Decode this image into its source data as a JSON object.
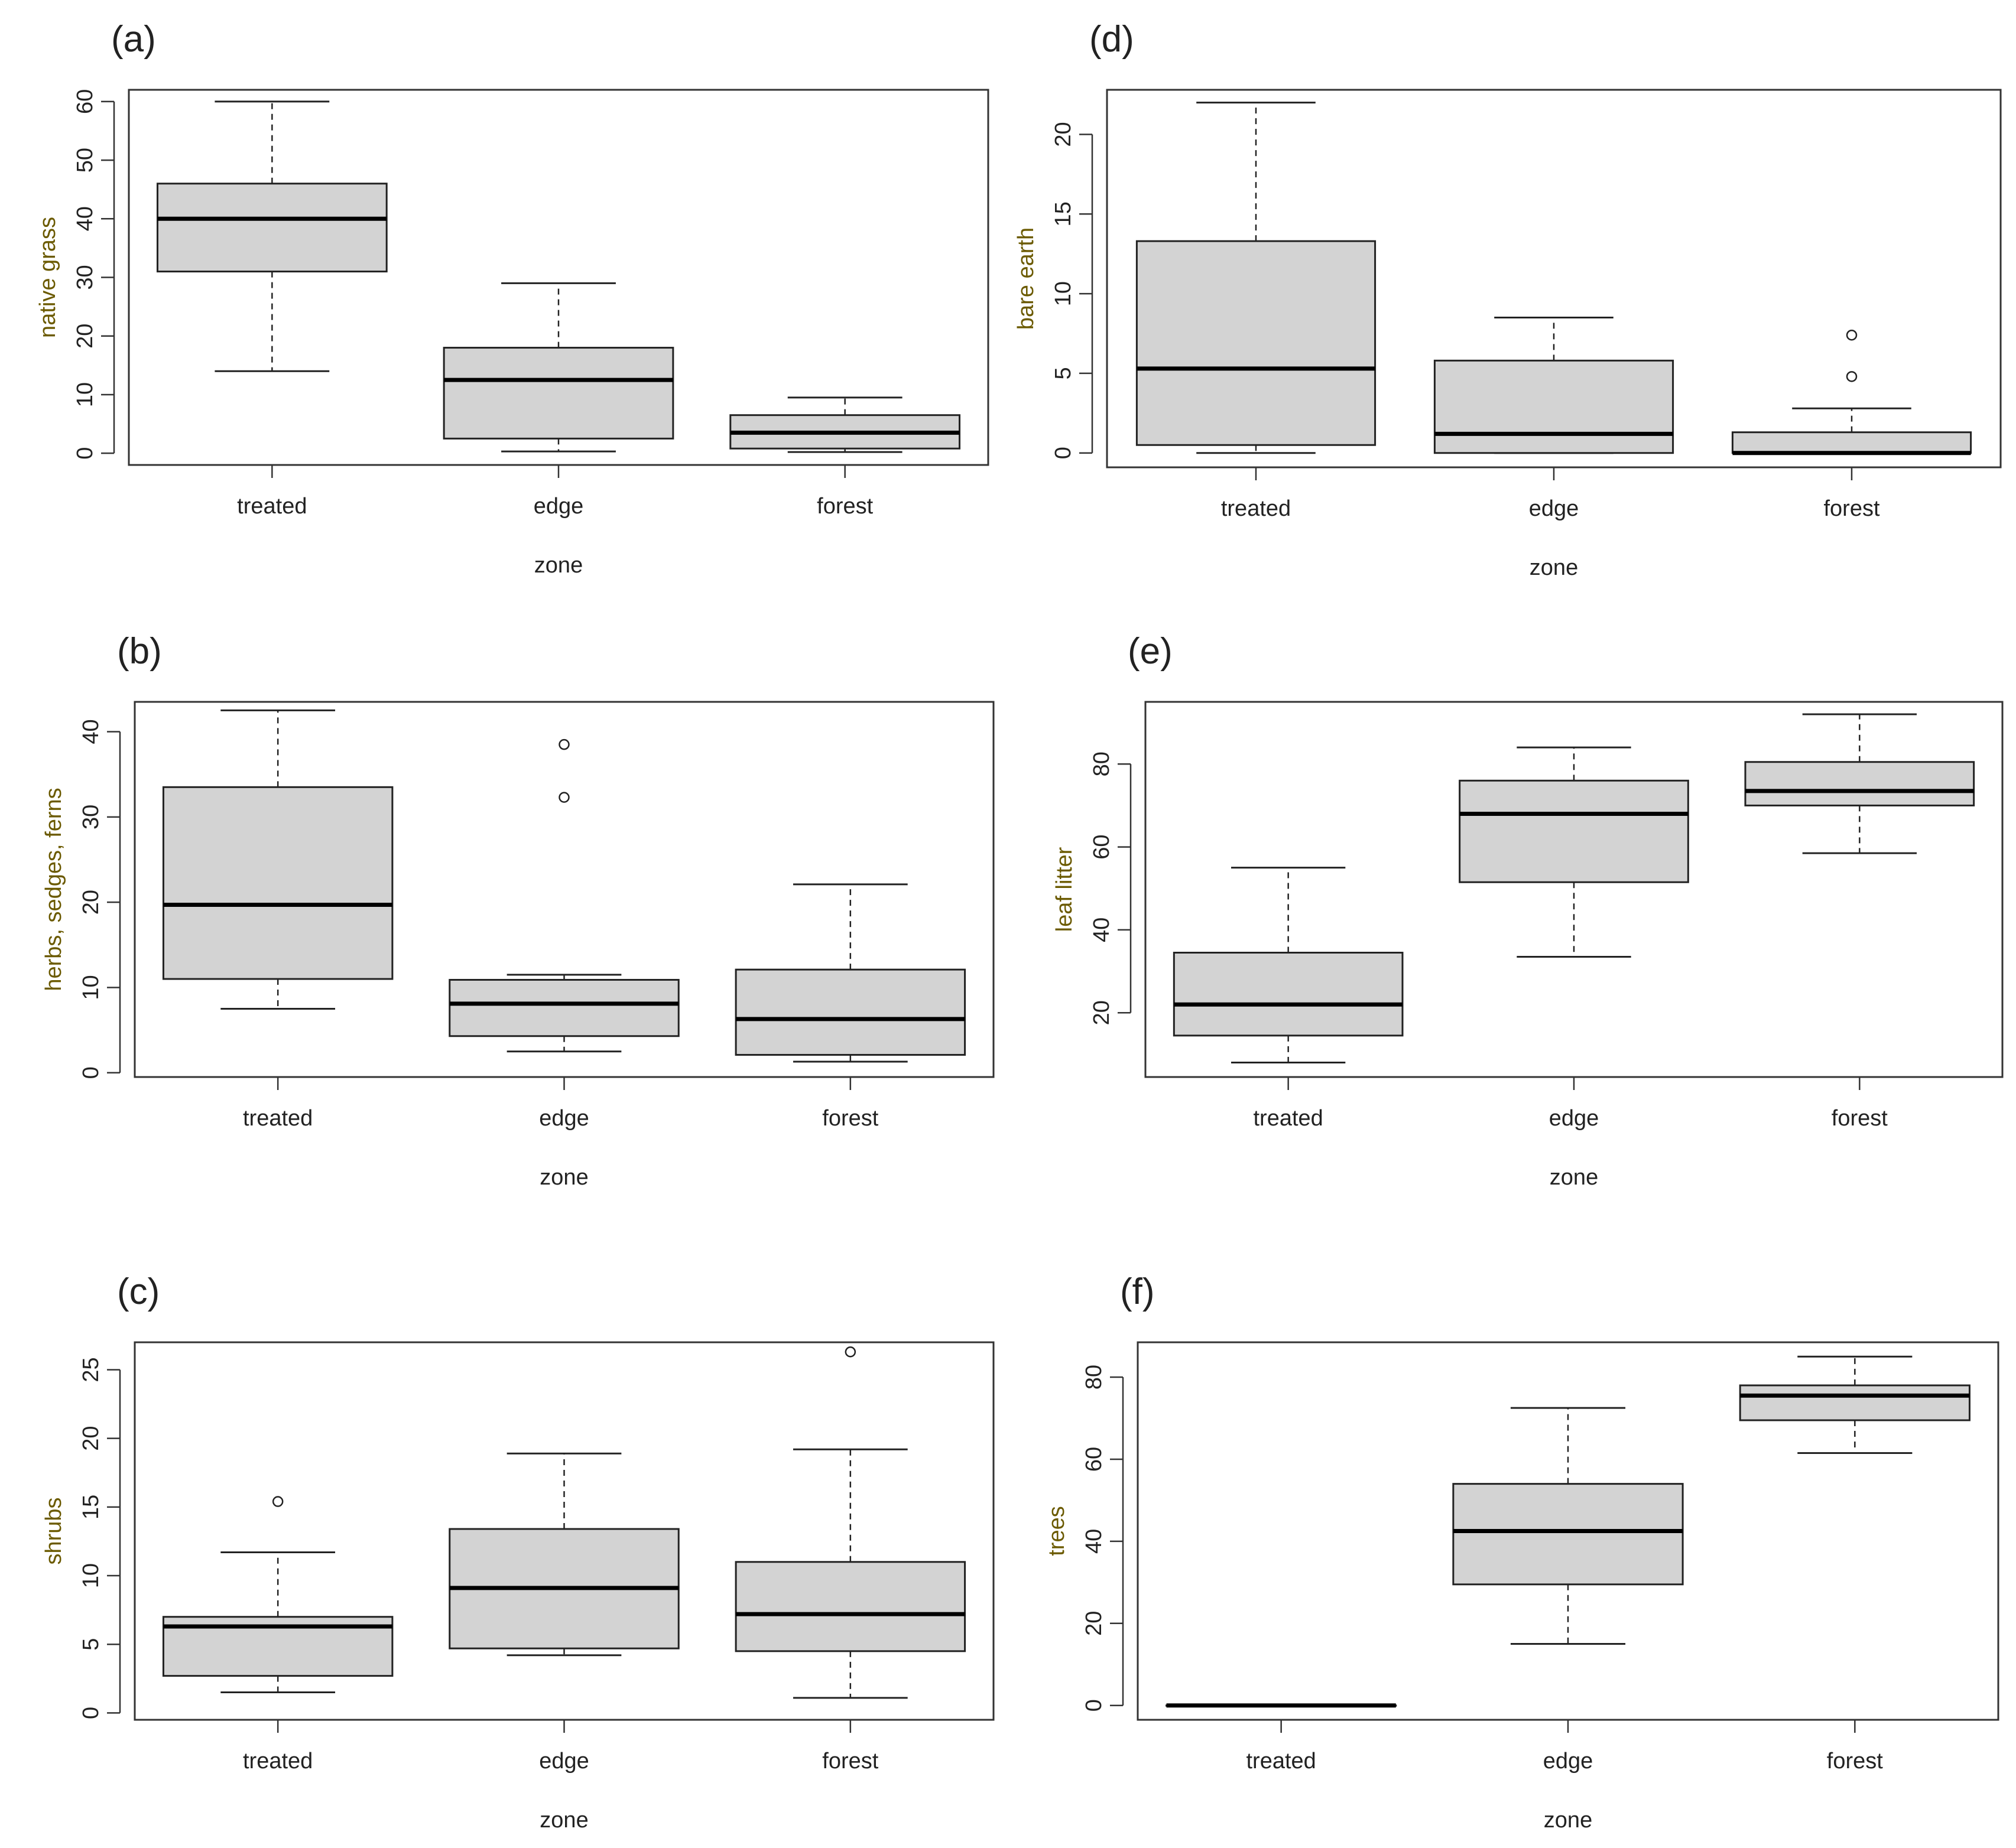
{
  "figure": {
    "background": "#ffffff",
    "box_fill": "#d3d3d3",
    "ylabel_color": "#6b5a00"
  },
  "chart_data": [
    {
      "type": "boxplot",
      "panel": "(a)",
      "xlabel": "zone",
      "ylabel": "native grass",
      "categories": [
        "treated",
        "edge",
        "forest"
      ],
      "ylim": [
        -2,
        62
      ],
      "yticks": [
        0,
        10,
        20,
        30,
        40,
        50,
        60
      ],
      "boxes": [
        {
          "category": "treated",
          "whisker_low": 14,
          "q1": 31,
          "median": 40,
          "q3": 46,
          "whisker_high": 60,
          "outliers": []
        },
        {
          "category": "edge",
          "whisker_low": 0.3,
          "q1": 2.5,
          "median": 12.5,
          "q3": 18,
          "whisker_high": 29,
          "outliers": []
        },
        {
          "category": "forest",
          "whisker_low": 0.2,
          "q1": 0.8,
          "median": 3.5,
          "q3": 6.5,
          "whisker_high": 9.5,
          "outliers": []
        }
      ]
    },
    {
      "type": "boxplot",
      "panel": "(b)",
      "xlabel": "zone",
      "ylabel": "herbs, sedges, ferns",
      "categories": [
        "treated",
        "edge",
        "forest"
      ],
      "ylim": [
        -0.5,
        43.5
      ],
      "yticks": [
        0,
        10,
        20,
        30,
        40
      ],
      "boxes": [
        {
          "category": "treated",
          "whisker_low": 7.5,
          "q1": 11,
          "median": 19.7,
          "q3": 33.5,
          "whisker_high": 42.5,
          "outliers": []
        },
        {
          "category": "edge",
          "whisker_low": 2.5,
          "q1": 4.3,
          "median": 8.1,
          "q3": 10.9,
          "whisker_high": 11.5,
          "outliers": [
            32.3,
            38.5
          ]
        },
        {
          "category": "forest",
          "whisker_low": 1.3,
          "q1": 2.1,
          "median": 6.3,
          "q3": 12.1,
          "whisker_high": 22.1,
          "outliers": []
        }
      ]
    },
    {
      "type": "boxplot",
      "panel": "(c)",
      "xlabel": "zone",
      "ylabel": "shrubs",
      "categories": [
        "treated",
        "edge",
        "forest"
      ],
      "ylim": [
        -0.5,
        27.0
      ],
      "yticks": [
        0,
        5,
        10,
        15,
        20,
        25
      ],
      "boxes": [
        {
          "category": "treated",
          "whisker_low": 1.5,
          "q1": 2.7,
          "median": 6.3,
          "q3": 7.0,
          "whisker_high": 11.7,
          "outliers": [
            15.4
          ]
        },
        {
          "category": "edge",
          "whisker_low": 4.2,
          "q1": 4.7,
          "median": 9.1,
          "q3": 13.4,
          "whisker_high": 18.9,
          "outliers": []
        },
        {
          "category": "forest",
          "whisker_low": 1.1,
          "q1": 4.5,
          "median": 7.2,
          "q3": 11.0,
          "whisker_high": 19.2,
          "outliers": [
            26.3
          ]
        }
      ]
    },
    {
      "type": "boxplot",
      "panel": "(d)",
      "xlabel": "zone",
      "ylabel": "bare earth",
      "categories": [
        "treated",
        "edge",
        "forest"
      ],
      "ylim": [
        -0.9,
        22.8
      ],
      "yticks": [
        0,
        5,
        10,
        15,
        20
      ],
      "boxes": [
        {
          "category": "treated",
          "whisker_low": 0,
          "q1": 0.5,
          "median": 5.3,
          "q3": 13.3,
          "whisker_high": 22,
          "outliers": []
        },
        {
          "category": "edge",
          "whisker_low": 0,
          "q1": 0,
          "median": 1.2,
          "q3": 5.8,
          "whisker_high": 8.5,
          "outliers": []
        },
        {
          "category": "forest",
          "whisker_low": 0,
          "q1": 0,
          "median": 0,
          "q3": 1.3,
          "whisker_high": 2.8,
          "outliers": [
            4.8,
            7.4
          ]
        }
      ]
    },
    {
      "type": "boxplot",
      "panel": "(e)",
      "xlabel": "zone",
      "ylabel": "leaf litter",
      "categories": [
        "treated",
        "edge",
        "forest"
      ],
      "ylim": [
        4.5,
        95.0
      ],
      "yticks": [
        20,
        40,
        60,
        80
      ],
      "boxes": [
        {
          "category": "treated",
          "whisker_low": 8,
          "q1": 14.5,
          "median": 22,
          "q3": 34.5,
          "whisker_high": 55,
          "outliers": []
        },
        {
          "category": "edge",
          "whisker_low": 33.5,
          "q1": 51.5,
          "median": 68,
          "q3": 76,
          "whisker_high": 84,
          "outliers": []
        },
        {
          "category": "forest",
          "whisker_low": 58.5,
          "q1": 70,
          "median": 73.5,
          "q3": 80.5,
          "whisker_high": 92,
          "outliers": []
        }
      ]
    },
    {
      "type": "boxplot",
      "panel": "(f)",
      "xlabel": "zone",
      "ylabel": "trees",
      "categories": [
        "treated",
        "edge",
        "forest"
      ],
      "ylim": [
        -3.5,
        88.5
      ],
      "yticks": [
        0,
        20,
        40,
        60,
        80
      ],
      "boxes": [
        {
          "category": "treated",
          "whisker_low": 0,
          "q1": 0,
          "median": 0,
          "q3": 0,
          "whisker_high": 0,
          "outliers": []
        },
        {
          "category": "edge",
          "whisker_low": 15,
          "q1": 29.5,
          "median": 42.5,
          "q3": 54,
          "whisker_high": 72.5,
          "outliers": []
        },
        {
          "category": "forest",
          "whisker_low": 61.5,
          "q1": 69.5,
          "median": 75.5,
          "q3": 78,
          "whisker_high": 85,
          "outliers": []
        }
      ]
    }
  ]
}
